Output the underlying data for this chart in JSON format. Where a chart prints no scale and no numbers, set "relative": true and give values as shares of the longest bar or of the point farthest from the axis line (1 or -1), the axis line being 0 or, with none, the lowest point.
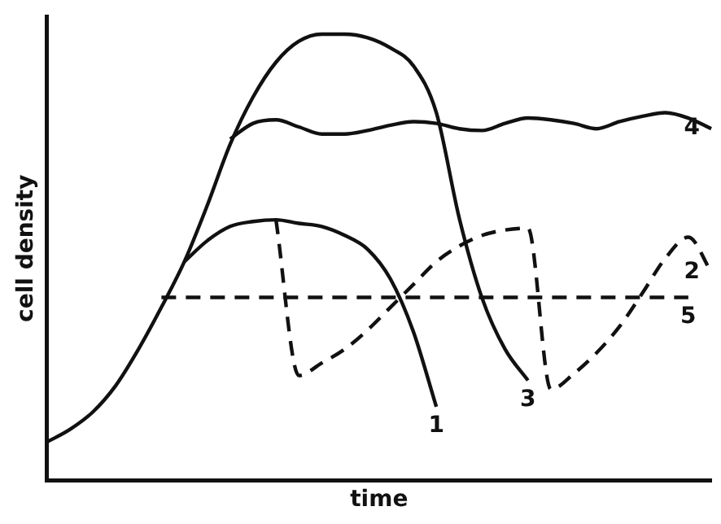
{
  "chart_data": {
    "type": "line",
    "relative": true,
    "xlabel": "time",
    "ylabel": "cell density",
    "marker": "none",
    "legend": false,
    "grid": false,
    "tick_labels": false,
    "categories": [
      null,
      null,
      null,
      null,
      null,
      null,
      null,
      null,
      null,
      null,
      null,
      null,
      null,
      null,
      null,
      null,
      null,
      null,
      null,
      null,
      null,
      null,
      null,
      null,
      null,
      null,
      null,
      null,
      null,
      null
    ],
    "series": [
      {
        "name": "3",
        "color": "#111111",
        "line_style": "solid",
        "values": [
          0.086,
          0.114,
          0.153,
          0.212,
          0.294,
          0.388,
          0.49,
          0.616,
          0.753,
          0.859,
          0.937,
          0.984,
          1,
          1,
          0.992,
          0.969,
          0.929,
          0.824,
          0.588,
          0.408,
          0.294,
          0.224,
          null,
          null,
          null,
          null,
          null,
          null,
          null,
          null
        ]
      },
      {
        "name": "1",
        "color": "#111111",
        "line_style": "solid",
        "values": [
          null,
          null,
          null,
          null,
          null,
          null,
          0.49,
          0.537,
          0.569,
          0.58,
          0.584,
          0.576,
          0.569,
          0.549,
          0.518,
          0.451,
          0.333,
          0.165,
          null,
          null,
          null,
          null,
          null,
          null,
          null,
          null,
          null,
          null,
          null,
          null
        ]
      },
      {
        "name": "4",
        "color": "#111111",
        "line_style": "solid",
        "values": [
          null,
          null,
          null,
          null,
          null,
          null,
          null,
          null,
          0.765,
          0.8,
          0.808,
          0.792,
          0.776,
          0.776,
          0.784,
          0.796,
          0.804,
          0.8,
          0.788,
          0.784,
          0.8,
          0.812,
          0.808,
          0.8,
          0.788,
          0.804,
          0.816,
          0.824,
          0.812,
          0.788
        ]
      },
      {
        "name": "5",
        "color": "#111111",
        "line_style": "dashed",
        "values": [
          null,
          null,
          null,
          null,
          null,
          0.41,
          0.41,
          0.41,
          0.41,
          0.41,
          0.41,
          0.41,
          0.41,
          0.41,
          0.41,
          0.41,
          0.41,
          0.41,
          0.41,
          0.41,
          0.41,
          0.41,
          0.41,
          0.41,
          0.41,
          0.41,
          0.41,
          0.41,
          0.41,
          null
        ]
      },
      {
        "name": "2",
        "color": "#111111",
        "line_style": "dashed",
        "values": [
          null,
          null,
          null,
          null,
          null,
          null,
          null,
          null,
          null,
          null,
          0.584,
          0.235,
          0.263,
          0.294,
          0.337,
          0.388,
          0.439,
          0.49,
          0.525,
          0.549,
          0.561,
          0.565,
          0.204,
          0.239,
          0.286,
          0.345,
          0.42,
          0.498,
          0.545,
          0.467
        ]
      }
    ]
  }
}
